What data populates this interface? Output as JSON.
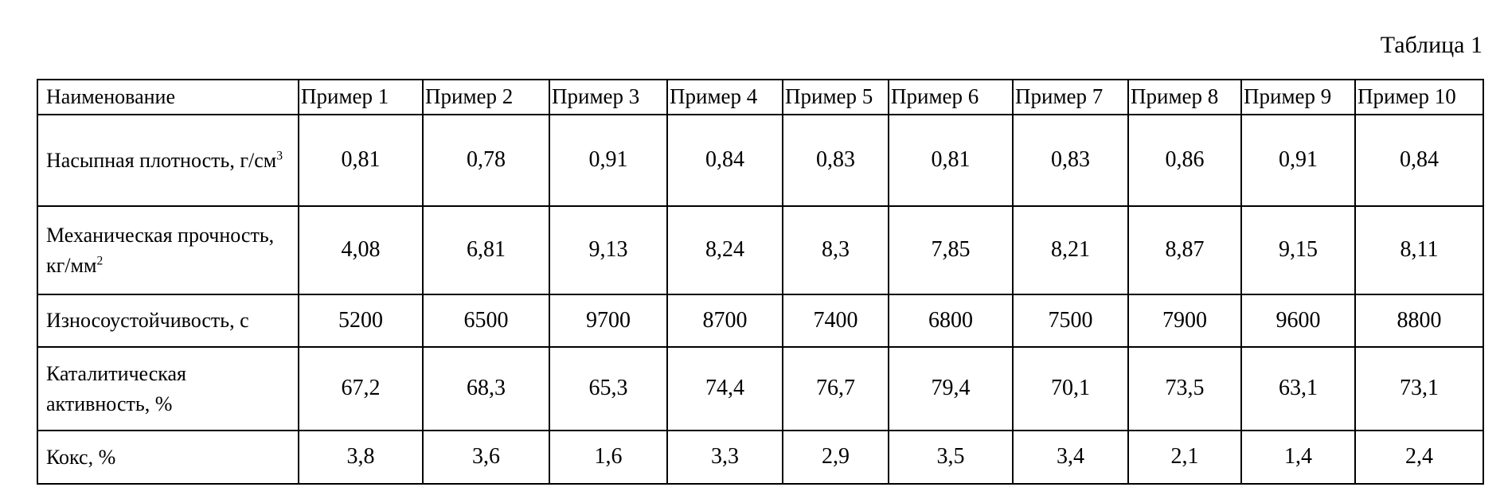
{
  "caption": "Таблица 1",
  "table": {
    "header": [
      "Наименование",
      "Пример 1",
      "Пример 2",
      "Пример 3",
      "Пример 4",
      "Пример 5",
      "Пример 6",
      "Пример 7",
      "Пример 8",
      "Пример 9",
      "Пример 10"
    ],
    "rows": [
      [
        {
          "text": "Насыпная плотность, г/см",
          "sup": "3"
        },
        "0,81",
        "0,78",
        "0,91",
        "0,84",
        "0,83",
        "0,81",
        "0,83",
        "0,86",
        "0,91",
        "0,84"
      ],
      [
        {
          "text": "Механическая прочность, кг/мм",
          "sup": "2"
        },
        "4,08",
        "6,81",
        "9,13",
        "8,24",
        "8,3",
        "7,85",
        "8,21",
        "8,87",
        "9,15",
        "8,11"
      ],
      [
        {
          "text": "Износоустойчивость, с"
        },
        "5200",
        "6500",
        "9700",
        "8700",
        "7400",
        "6800",
        "7500",
        "7900",
        "9600",
        "8800"
      ],
      [
        {
          "text": "Каталитическая активность, %"
        },
        "67,2",
        "68,3",
        "65,3",
        "74,4",
        "76,7",
        "79,4",
        "70,1",
        "73,5",
        "63,1",
        "73,1"
      ],
      [
        {
          "text": "Кокс, %"
        },
        "3,8",
        "3,6",
        "1,6",
        "3,3",
        "2,9",
        "3,5",
        "3,4",
        "2,1",
        "1,4",
        "2,4"
      ]
    ]
  }
}
